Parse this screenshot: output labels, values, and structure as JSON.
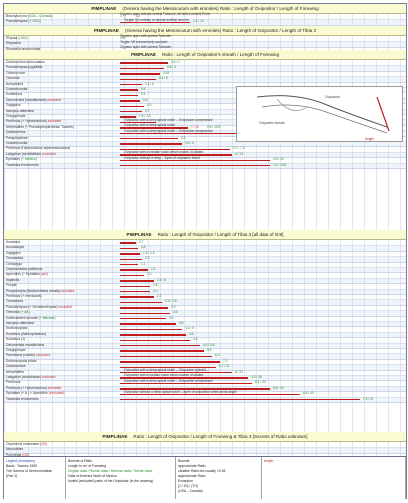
{
  "sections": [
    {
      "id": "s1",
      "title": "PIMPLINAE",
      "sub": "(Genera having the Mesoscutum with emmites)",
      "ratio": "Ratio : Length of Ovipositor / Length of Forewing",
      "rows": [
        {
          "name": "Brachycoryna",
          "tag": "(USA – Canada)",
          "w": 0,
          "note": "Clypeus apex without central Tubercle, all with a central Point",
          "nums": [
            [
              "1 / 7",
              "g"
            ],
            [
              "16",
              "r"
            ]
          ]
        },
        {
          "name": "Pseudorhyssa",
          "tag": "(+ USA)",
          "w": 70,
          "note": "Tergite 3/5 entirely or almost entirely smooth",
          "nums": [
            [
              "1.4 / 10",
              "g"
            ]
          ]
        }
      ]
    },
    {
      "id": "s2",
      "title": "PIMPLINAE",
      "sub": "(Genera having the Mesoscutum with emmites)",
      "ratio": "Ratio : Length of Ovipositor / Length of Tibia 3",
      "rows": [
        {
          "name": "Rhyssa",
          "tag": "(USA)",
          "w": 0,
          "note": "Clypeus apex with central Tubercle",
          "nums": [
            [
              "1/9",
              "g"
            ]
          ]
        },
        {
          "name": "Rhyssella",
          "tag": "",
          "w": 0,
          "note": "Tergite 3/5 transversely sculpted",
          "nums": []
        },
        {
          "name": "Rhyssella approximata",
          "tag": "",
          "w": 0,
          "note": "Clypeus apex with central Tubercle",
          "nums": []
        },
        {
          "name": "Pseudorhyssa sternata",
          "tag": "",
          "w": 0,
          "note": "Clypeus apex without central Tubercle, all with a strong median Point",
          "nums": []
        }
      ]
    },
    {
      "id": "s3",
      "title": "PIMPLINAE",
      "sub": "",
      "ratio": "Ratio : Length of Ovipositor's sheath / Length of Forewing",
      "rows": [
        {
          "name": "Dolichomitus tuberculatus",
          "tag": "",
          "w": 48,
          "note": "",
          "nums": [
            [
              "0.6 / 1",
              "g"
            ]
          ]
        },
        {
          "name": "Pseudorhyssa pygidialis",
          "tag": "",
          "w": 44,
          "note": "",
          "nums": [
            [
              "0.8 / 4",
              "g"
            ]
          ]
        },
        {
          "name": "Odontocolon",
          "tag": "",
          "w": 40,
          "note": "",
          "nums": [
            [
              "0.63",
              "g"
            ]
          ]
        },
        {
          "name": "Theronia",
          "tag": "",
          "w": 36,
          "note": "",
          "nums": [
            [
              "0.4 / 6",
              "g"
            ]
          ]
        },
        {
          "name": "Acropimpla",
          "tag": "",
          "w": 22,
          "note": "",
          "nums": [
            [
              "0.4 / 6",
              "g"
            ]
          ]
        },
        {
          "name": "Gravenhorstia",
          "tag": "",
          "w": 18,
          "note": "",
          "nums": [
            [
              "0.6",
              "g"
            ]
          ]
        },
        {
          "name": "Sciatrenus",
          "tag": "",
          "w": 18,
          "note": "",
          "nums": [
            [
              "0.5",
              "g"
            ]
          ]
        },
        {
          "name": "Delomerista (mandibularis)",
          "tag": "excluded",
          "w": 20,
          "note": "",
          "nums": [
            [
              "0.5",
              "g"
            ]
          ]
        },
        {
          "name": "Zaglyptus",
          "tag": "",
          "w": 24,
          "note": "",
          "nums": [
            [
              "1.0",
              "g"
            ]
          ]
        },
        {
          "name": "Iseropus alternator",
          "tag": "",
          "w": 22,
          "note": "",
          "nums": [
            [
              "0.7",
              "g"
            ]
          ]
        },
        {
          "name": "Gregopimpla",
          "tag": "",
          "w": 16,
          "note": "",
          "nums": [
            [
              "1.6 / 2.3",
              "g"
            ]
          ]
        },
        {
          "name": "Perithous (+ Hybomischos)",
          "tag": "excluded",
          "w": 36,
          "note": "Ovipositor with a deep apical notch – Ovipositor compressed",
          "nums": []
        },
        {
          "name": "Afrephialtes (+ Pseudopimpla tessa: Townes)",
          "tag": "",
          "w": 68,
          "note": "Ovipositor with a deep apical notch",
          "nums": [
            [
              "+ / -6",
              "r"
            ],
            [
              "0.8 / 10.5",
              "g"
            ]
          ]
        },
        {
          "name": "Dolichomitus",
          "tag": "",
          "w": 150,
          "note": "Ovipositor with a deep apical notch – Ovipositor compressed",
          "nums": [
            [
              "5 / 22",
              "g"
            ]
          ]
        },
        {
          "name": "Parapimplinae",
          "tag": "",
          "w": 58,
          "note": "",
          "nums": [
            [
              "2.5",
              "g"
            ]
          ]
        },
        {
          "name": "Gravenhorstia",
          "tag": "",
          "w": 62,
          "note": "",
          "nums": [
            [
              "0.5 / 5",
              "g"
            ]
          ]
        },
        {
          "name": "Perithous (Hybomischos septemcinctorius)",
          "tag": "",
          "w": 110,
          "note": "",
          "nums": [
            [
              "0.7 / 7.4",
              "g"
            ]
          ]
        },
        {
          "name": "Lakyptron (strobiliellae)",
          "tag": "excluded",
          "w": 112,
          "note": "Ovipositor with a median notch which makes it lobated",
          "nums": [
            [
              "4 / 13",
              "g"
            ]
          ]
        },
        {
          "name": "Ephialtes",
          "tag": "(+ Mexico)",
          "w": 150,
          "note": "Ovipositor without a deep – Apex of ovipositor lobed",
          "nums": [
            [
              "4.6 / 15",
              "g"
            ]
          ]
        },
        {
          "name": "Townesia tenuiventris",
          "tag": "",
          "w": 150,
          "note": "",
          "nums": [
            [
              "7.6 / 13.8",
              "g"
            ]
          ]
        }
      ]
    },
    {
      "id": "s4",
      "title": "PIMPLINAE",
      "sub": "",
      "ratio": "Ratio : Length of Ovipositor / Length of Tibia 3   [all data of GIII]",
      "rows": [
        {
          "name": "Scambus",
          "tag": "",
          "w": 16,
          "note": "",
          "nums": [
            [
              "0.7",
              "g"
            ]
          ]
        },
        {
          "name": "Acrodactyla",
          "tag": "",
          "w": 18,
          "note": "",
          "nums": [
            [
              "0.8",
              "g"
            ]
          ]
        },
        {
          "name": "Zaglyptus",
          "tag": "",
          "w": 20,
          "note": "",
          "nums": [
            [
              "1.6 / 2.6",
              "g"
            ]
          ]
        },
        {
          "name": "Tromatobia",
          "tag": "",
          "w": 22,
          "note": "",
          "nums": [
            [
              "2.2",
              "g"
            ]
          ]
        },
        {
          "name": "Clistopyga",
          "tag": "",
          "w": 18,
          "note": "",
          "nums": [
            [
              "1.1",
              "g"
            ]
          ]
        },
        {
          "name": "Oxyrhachidea politifrons",
          "tag": "",
          "w": 28,
          "note": "",
          "nums": [
            [
              "1.5",
              "g"
            ]
          ]
        },
        {
          "name": "Apechthis (+ Ephialtes",
          "tag": "part)",
          "w": 24,
          "note": "",
          "nums": [
            [
              "2.0",
              "g"
            ]
          ]
        },
        {
          "name": "Itoplectis",
          "tag": "",
          "w": 34,
          "note": "",
          "nums": [
            [
              "2.4 / 5",
              "g"
            ]
          ]
        },
        {
          "name": "Pimpla",
          "tag": "",
          "w": 30,
          "note": "",
          "nums": [
            [
              "1.8",
              "g"
            ]
          ]
        },
        {
          "name": "Pimplocrepis (Beckerveldea ornata)",
          "tag": "excluded",
          "w": 30,
          "note": "",
          "nums": [
            [
              "2.0",
              "g"
            ]
          ]
        },
        {
          "name": "Perithous (+ mexicanis)",
          "tag": "",
          "w": 34,
          "note": "",
          "nums": [
            [
              "2.3",
              "g"
            ]
          ]
        },
        {
          "name": "Tromatobia",
          "tag": "",
          "w": 42,
          "note": "",
          "nums": [
            [
              "2.9 / 3.5",
              "g"
            ]
          ]
        },
        {
          "name": "Pseudorhyssa (+ Nomberorhyssa)",
          "tag": "excluded",
          "w": 48,
          "note": "",
          "nums": [
            [
              "3.3",
              "g"
            ]
          ]
        },
        {
          "name": "Theronia",
          "tag": "(+ alt.)",
          "w": 50,
          "note": "",
          "nums": [
            [
              "3.5",
              "g"
            ]
          ]
        },
        {
          "name": "Dodecamera arcuata",
          "tag": "(+ atticans)",
          "w": 46,
          "note": "",
          "nums": [
            [
              "3.0",
              "g"
            ]
          ]
        },
        {
          "name": "Iseropus alternator",
          "tag": "",
          "w": 56,
          "note": "",
          "nums": [
            [
              "3.8",
              "g"
            ]
          ]
        },
        {
          "name": "Endromopoda",
          "tag": "",
          "w": 62,
          "note": "",
          "nums": [
            [
              "4.3 / 5",
              "g"
            ]
          ]
        },
        {
          "name": "Scambus (Ateleophadnus)",
          "tag": "",
          "w": 66,
          "note": "",
          "nums": [
            [
              "4.6",
              "g"
            ]
          ]
        },
        {
          "name": "Scambus (1)",
          "tag": "",
          "w": 70,
          "note": "",
          "nums": [
            [
              "4.8",
              "g"
            ]
          ]
        },
        {
          "name": "Delomerista mandibularis",
          "tag": "",
          "w": 80,
          "note": "",
          "nums": [
            [
              "4.0 / 5.6",
              "g"
            ]
          ]
        },
        {
          "name": "Gregopimpla",
          "tag": "",
          "w": 84,
          "note": "",
          "nums": [
            [
              "5.9",
              "g"
            ]
          ]
        },
        {
          "name": "Pseudoma (caricis)",
          "tag": "excluded",
          "w": 92,
          "note": "",
          "nums": [
            [
              "6.3",
              "g"
            ]
          ]
        },
        {
          "name": "Endromopoda nitida",
          "tag": "",
          "w": 100,
          "note": "",
          "nums": [
            [
              "7.0",
              "g"
            ]
          ]
        },
        {
          "name": "Dolichomitus",
          "tag": "",
          "w": 96,
          "note": "",
          "nums": [
            [
              "6.7 / 21",
              "g"
            ]
          ]
        },
        {
          "name": "Afrephialtes",
          "tag": "",
          "w": 112,
          "note": "Ovipositor with a deep apical notch – Ovipositor cylindric",
          "nums": [
            [
              "8 / 22",
              "g"
            ]
          ]
        },
        {
          "name": "Lakyptron (strobiliellae)",
          "tag": "excluded",
          "w": 128,
          "note": "Ovipositor with a median notch which makes it lobated",
          "nums": [
            [
              "3.3 / 35",
              "g"
            ]
          ]
        },
        {
          "name": "Perithous",
          "tag": "",
          "w": 132,
          "note": "Ovipositor with a deep apical notch – Ovipositor compressed",
          "nums": [
            [
              "6.4 / 33",
              "g"
            ]
          ]
        },
        {
          "name": "Perithous (+ Hybomischos)",
          "tag": "excluded",
          "w": 150,
          "note": "",
          "nums": [
            [
              "6.8 / 25",
              "g"
            ]
          ]
        },
        {
          "name": "Ephialtes (+ A.) × Apechthis",
          "tag": "(excluded)",
          "w": 180,
          "note": "Ovipositor without a deep apical notch – Apex of ovipositor lobed-arrow angle",
          "nums": [
            [
              "6.8 / 40",
              "g"
            ]
          ]
        },
        {
          "name": "Townesia tenuiventris",
          "tag": "",
          "w": 240,
          "note": "",
          "nums": [
            [
              "7.5 / 57",
              "g"
            ]
          ]
        }
      ]
    },
    {
      "id": "s5",
      "title": "PIMPLINAE",
      "sub": "",
      "ratio": "Ratio : Length of Ovipositor / Length of Forewing & Tibia 3   [Secrets of Ratio unknown]",
      "rows": [
        {
          "name": "Oxyrrhexis carbonator",
          "tag": "(GII)",
          "w": 0,
          "note": "",
          "nums": []
        },
        {
          "name": "Neoxorides",
          "tag": "",
          "w": 0,
          "note": "",
          "nums": []
        },
        {
          "name": "Poemenia",
          "tag": "(GII)",
          "w": 0,
          "note": "",
          "nums": []
        },
        {
          "name": "Xanthopimpla",
          "tag": "(GII)",
          "w": 0,
          "note": "",
          "nums": []
        }
      ]
    }
  ],
  "figure": {
    "label_left": "Ovipositor sheath",
    "label_mid": "Ovipositor",
    "label_right": "length"
  },
  "legend": {
    "col1": [
      "Legend (examples)",
      "Basis : Townes 1969",
      "The Genera of Ichneumonidae",
      "(Part 1)"
    ],
    "col2": [
      "Bounds of Ratio",
      "",
      "Length is rel. of Forewing",
      "English data / Finnish data / German data / Turkish data",
      "Data of America North of Mexico",
      "Invalid (excluded) parts of the Ovipositor (in the drawing)"
    ],
    "col3": [
      "Bounds",
      "approximate Ratio",
      "variable Ratio but usually <0.45",
      "approximate Ratio",
      "Exception",
      "[1 / 10] / (TO)",
      "(USA – Canada)"
    ],
    "col4": [
      "length"
    ]
  }
}
